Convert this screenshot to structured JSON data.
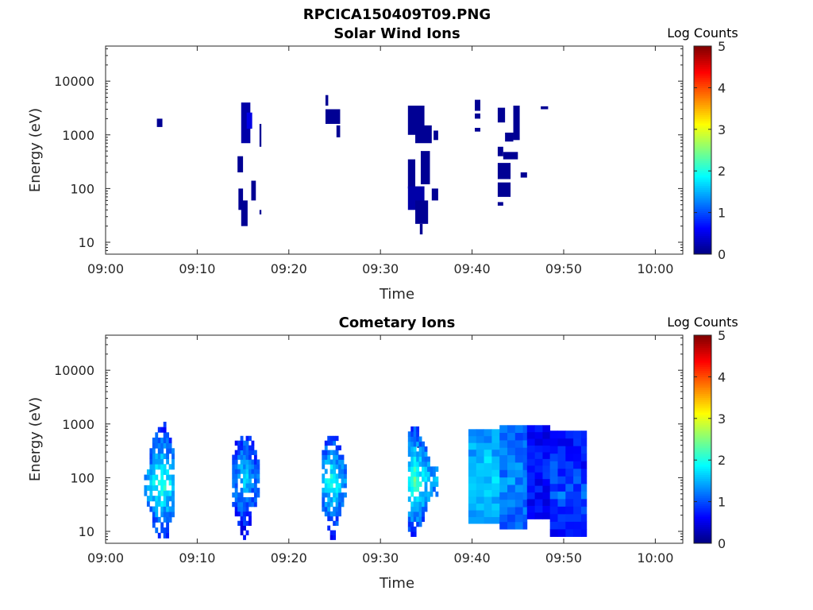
{
  "figure": {
    "main_title": "RPCICA150409T09.PNG"
  },
  "chart_data": [
    {
      "type": "heatmap",
      "title": "Solar Wind Ions",
      "xlabel": "Time",
      "ylabel": "Energy (eV)",
      "x_unit": "minutes after 09:00",
      "xlim": [
        0,
        63
      ],
      "ylim": [
        6,
        45000
      ],
      "yscale": "log",
      "x_tick_values": [
        0,
        10,
        20,
        30,
        40,
        50,
        60
      ],
      "x_tick_labels": [
        "09:00",
        "09:10",
        "09:20",
        "09:30",
        "09:40",
        "09:50",
        "10:00"
      ],
      "y_tick_values": [
        10,
        100,
        1000,
        10000
      ],
      "y_tick_labels": [
        "10",
        "100",
        "1000",
        "10000"
      ],
      "colorbar": {
        "label": "Log Counts",
        "range": [
          0,
          5
        ],
        "ticks": [
          "0",
          "1",
          "2",
          "3",
          "4",
          "5"
        ],
        "colormap": "jet"
      },
      "cells": [
        {
          "t0": 5.6,
          "t1": 6.2,
          "e0": 1400,
          "e1": 2000,
          "v": 0.1
        },
        {
          "t0": 14.8,
          "t1": 15.8,
          "e0": 700,
          "e1": 4000,
          "v": 0.2
        },
        {
          "t0": 15.4,
          "t1": 16.0,
          "e0": 1300,
          "e1": 2600,
          "v": 0.5
        },
        {
          "t0": 16.8,
          "t1": 17.0,
          "e0": 600,
          "e1": 1600,
          "v": 0.1
        },
        {
          "t0": 14.4,
          "t1": 15.0,
          "e0": 200,
          "e1": 400,
          "v": 0.1
        },
        {
          "t0": 14.5,
          "t1": 15.0,
          "e0": 40,
          "e1": 100,
          "v": 0.1
        },
        {
          "t0": 14.8,
          "t1": 15.5,
          "e0": 20,
          "e1": 60,
          "v": 0.1
        },
        {
          "t0": 15.9,
          "t1": 16.4,
          "e0": 60,
          "e1": 140,
          "v": 0.1
        },
        {
          "t0": 16.8,
          "t1": 17.0,
          "e0": 33,
          "e1": 40,
          "v": 0.1
        },
        {
          "t0": 24.0,
          "t1": 25.6,
          "e0": 1600,
          "e1": 3000,
          "v": 0.1
        },
        {
          "t0": 24.0,
          "t1": 24.3,
          "e0": 3500,
          "e1": 5500,
          "v": 0.1
        },
        {
          "t0": 25.2,
          "t1": 25.6,
          "e0": 900,
          "e1": 1500,
          "v": 0.1
        },
        {
          "t0": 33.0,
          "t1": 34.8,
          "e0": 1000,
          "e1": 3500,
          "v": 0.1
        },
        {
          "t0": 33.8,
          "t1": 35.6,
          "e0": 700,
          "e1": 1500,
          "v": 0.1
        },
        {
          "t0": 35.8,
          "t1": 36.3,
          "e0": 800,
          "e1": 1200,
          "v": 0.1
        },
        {
          "t0": 33.0,
          "t1": 33.8,
          "e0": 100,
          "e1": 350,
          "v": 0.1
        },
        {
          "t0": 33.0,
          "t1": 34.8,
          "e0": 40,
          "e1": 110,
          "v": 0.2
        },
        {
          "t0": 33.8,
          "t1": 35.2,
          "e0": 22,
          "e1": 60,
          "v": 0.1
        },
        {
          "t0": 34.4,
          "t1": 35.4,
          "e0": 120,
          "e1": 500,
          "v": 0.1
        },
        {
          "t0": 35.6,
          "t1": 36.3,
          "e0": 60,
          "e1": 100,
          "v": 0.1
        },
        {
          "t0": 34.3,
          "t1": 34.6,
          "e0": 14,
          "e1": 22,
          "v": 0.1
        },
        {
          "t0": 40.3,
          "t1": 40.9,
          "e0": 2800,
          "e1": 4500,
          "v": 0.1
        },
        {
          "t0": 40.3,
          "t1": 40.9,
          "e0": 2000,
          "e1": 2500,
          "v": 0.1
        },
        {
          "t0": 40.3,
          "t1": 40.9,
          "e0": 1150,
          "e1": 1350,
          "v": 0.1
        },
        {
          "t0": 42.8,
          "t1": 43.6,
          "e0": 1700,
          "e1": 3200,
          "v": 0.1
        },
        {
          "t0": 44.5,
          "t1": 45.2,
          "e0": 800,
          "e1": 3500,
          "v": 0.1
        },
        {
          "t0": 43.6,
          "t1": 44.5,
          "e0": 750,
          "e1": 1100,
          "v": 0.1
        },
        {
          "t0": 42.8,
          "t1": 43.4,
          "e0": 400,
          "e1": 600,
          "v": 0.1
        },
        {
          "t0": 43.4,
          "t1": 45.0,
          "e0": 350,
          "e1": 480,
          "v": 0.1
        },
        {
          "t0": 42.8,
          "t1": 44.2,
          "e0": 150,
          "e1": 300,
          "v": 0.1
        },
        {
          "t0": 45.3,
          "t1": 46.0,
          "e0": 160,
          "e1": 200,
          "v": 0.1
        },
        {
          "t0": 42.8,
          "t1": 44.2,
          "e0": 70,
          "e1": 130,
          "v": 0.1
        },
        {
          "t0": 42.8,
          "t1": 43.4,
          "e0": 48,
          "e1": 56,
          "v": 0.1
        },
        {
          "t0": 47.5,
          "t1": 48.3,
          "e0": 3000,
          "e1": 3400,
          "v": 0.1
        }
      ]
    },
    {
      "type": "heatmap",
      "title": "Cometary Ions",
      "xlabel": "Time",
      "ylabel": "Energy (eV)",
      "x_unit": "minutes after 09:00",
      "xlim": [
        0,
        63
      ],
      "ylim": [
        6,
        45000
      ],
      "yscale": "log",
      "x_tick_values": [
        0,
        10,
        20,
        30,
        40,
        50,
        60
      ],
      "x_tick_labels": [
        "09:00",
        "09:10",
        "09:20",
        "09:30",
        "09:40",
        "09:50",
        "10:00"
      ],
      "y_tick_values": [
        10,
        100,
        1000,
        10000
      ],
      "y_tick_labels": [
        "10",
        "100",
        "1000",
        "10000"
      ],
      "colorbar": {
        "label": "Log Counts",
        "range": [
          0,
          5
        ],
        "ticks": [
          "0",
          "1",
          "2",
          "3",
          "4",
          "5"
        ],
        "colormap": "jet"
      },
      "bursts": [
        {
          "t0": 4.2,
          "t1": 7.4,
          "tpeak": 6.0,
          "e0": 7.5,
          "e1": 1100,
          "epeak": 70,
          "v": 1.9
        },
        {
          "t0": 13.8,
          "t1": 16.8,
          "tpeak": 15.0,
          "e0": 7.0,
          "e1": 600,
          "epeak": 90,
          "v": 1.4
        },
        {
          "t0": 23.6,
          "t1": 26.2,
          "tpeak": 24.6,
          "e0": 7.0,
          "e1": 600,
          "epeak": 80,
          "v": 1.8
        },
        {
          "t0": 33.0,
          "t1": 36.2,
          "tpeak": 33.6,
          "e0": 8.0,
          "e1": 900,
          "epeak": 80,
          "v": 2.0
        }
      ],
      "blocks": [
        {
          "t0": 39.6,
          "t1": 43.0,
          "e0": 14,
          "e1": 800,
          "v": 1.4,
          "peak": 2.0
        },
        {
          "t0": 43.0,
          "t1": 46.0,
          "e0": 11,
          "e1": 950,
          "v": 1.1,
          "peak": 1.5
        },
        {
          "t0": 46.0,
          "t1": 48.5,
          "e0": 17,
          "e1": 950,
          "v": 0.6,
          "peak": 1.0
        },
        {
          "t0": 48.5,
          "t1": 52.5,
          "e0": 8,
          "e1": 750,
          "v": 0.7,
          "peak": 1.3
        }
      ],
      "cells": [
        {
          "t0": 34.0,
          "t1": 34.3,
          "e0": 360,
          "e1": 400,
          "v": 0.1
        }
      ]
    }
  ]
}
